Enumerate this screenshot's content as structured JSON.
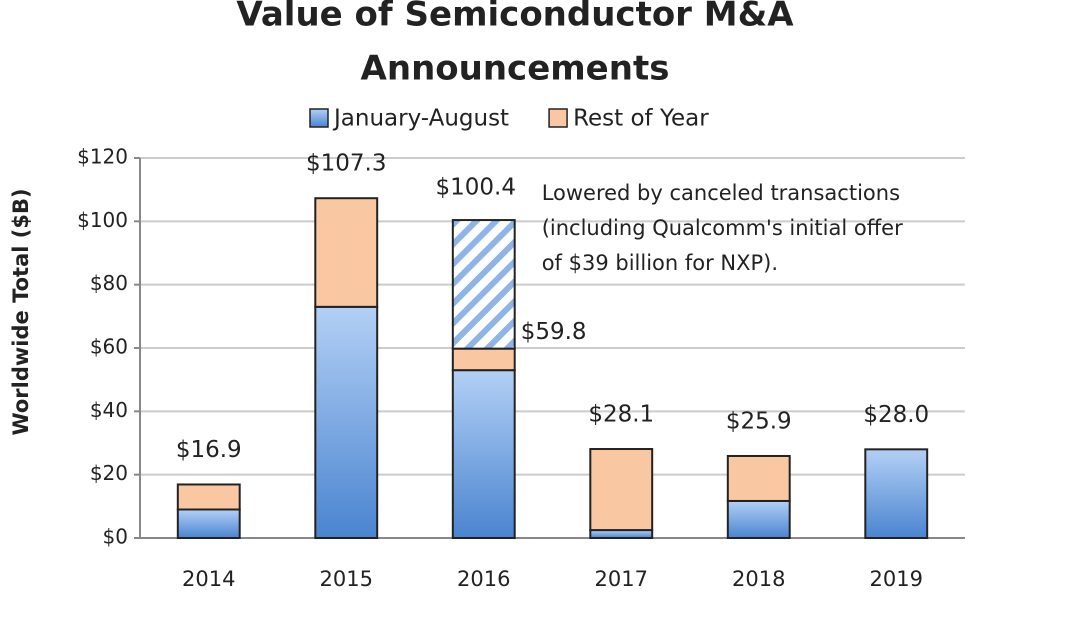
{
  "chart_data": {
    "type": "stacked_bar",
    "title": [
      "Value of Semiconductor M&A",
      "Announcements"
    ],
    "ylabel": "Worldwide Total ($B)",
    "categories": [
      "2014",
      "2015",
      "2016",
      "2017",
      "2018",
      "2019"
    ],
    "series": [
      {
        "name": "January-August",
        "color": "#6a9ee0",
        "values": [
          9,
          73,
          53,
          2.5,
          11.7,
          28.0
        ]
      },
      {
        "name": "Rest of Year",
        "color": "#f9c8a3",
        "values": [
          7.9,
          34.3,
          6.8,
          25.6,
          14.2,
          null
        ]
      }
    ],
    "totals": [
      16.9,
      107.3,
      59.8,
      28.1,
      25.9,
      28.0
    ],
    "total_labels": [
      "$16.9",
      "$107.3",
      "$59.8",
      "$28.1",
      "$25.9",
      "$28.0"
    ],
    "canceled": {
      "category": "2016",
      "value": 100.4,
      "value_label": "$100.4",
      "color": "#8fb4e6",
      "note": [
        "Lowered by canceled transactions",
        "(including Qualcomm's initial offer",
        "of $39 billion for NXP)."
      ]
    },
    "ylim": [
      0,
      120
    ],
    "yticks": [
      {
        "value": 0,
        "label": "$0"
      },
      {
        "value": 20,
        "label": "$20"
      },
      {
        "value": 40,
        "label": "$40"
      },
      {
        "value": 60,
        "label": "$60"
      },
      {
        "value": 80,
        "label": "$80"
      },
      {
        "value": 100,
        "label": "$100"
      },
      {
        "value": 120,
        "label": "$120"
      }
    ],
    "grid": true,
    "legend": "top"
  }
}
